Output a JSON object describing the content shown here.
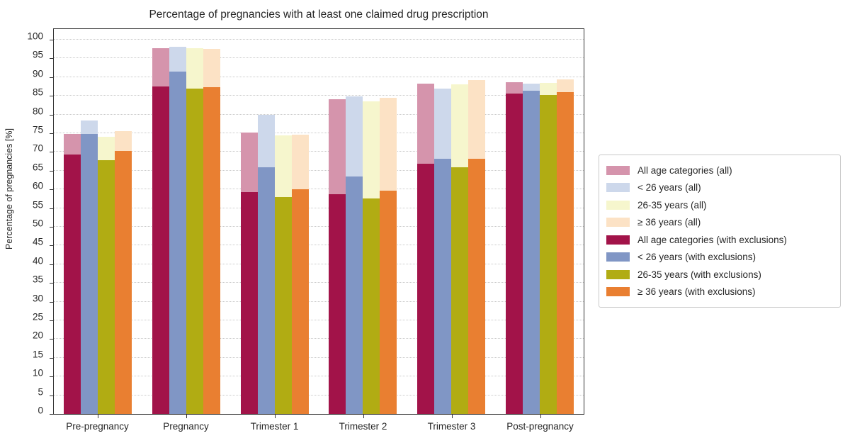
{
  "chart_data": {
    "type": "bar",
    "title": "Percentage of pregnancies with at least one claimed drug prescription",
    "xlabel": "",
    "ylabel": "Percentage of pregnancies [%]",
    "ylim": [
      0,
      100
    ],
    "ytick_step": 5,
    "grid": "horizontal-dotted",
    "legend_position": "right-outside",
    "categories": [
      "Pre-pregnancy",
      "Pregnancy",
      "Trimester 1",
      "Trimester 2",
      "Trimester 3",
      "Post-pregnancy"
    ],
    "series": [
      {
        "name": "All age categories (all)",
        "color": "#d594ac",
        "overlay": "background",
        "values": [
          74.9,
          97.8,
          75.2,
          84.0,
          88.3,
          88.7
        ]
      },
      {
        "name": "< 26 years (all)",
        "color": "#cdd8eb",
        "overlay": "background",
        "values": [
          78.5,
          98.2,
          80.0,
          84.8,
          86.9,
          88.3
        ]
      },
      {
        "name": "26-35 years (all)",
        "color": "#f6f6cd",
        "overlay": "background",
        "values": [
          74.1,
          97.7,
          74.5,
          83.5,
          88.1,
          88.5
        ]
      },
      {
        "name": "≥ 36 years (all)",
        "color": "#fce2c5",
        "overlay": "background",
        "values": [
          75.6,
          97.6,
          74.6,
          84.5,
          89.2,
          89.4
        ]
      },
      {
        "name": "All age categories (with exclusions)",
        "color": "#a21349",
        "overlay": "foreground",
        "values": [
          69.3,
          87.5,
          59.3,
          58.8,
          66.8,
          85.6
        ]
      },
      {
        "name": "< 26 years (with exclusions)",
        "color": "#8096c5",
        "overlay": "foreground",
        "values": [
          74.8,
          91.4,
          66.0,
          63.5,
          68.1,
          86.4
        ]
      },
      {
        "name": "26-35 years (with exclusions)",
        "color": "#b1ac13",
        "overlay": "foreground",
        "values": [
          67.8,
          86.9,
          58.0,
          57.5,
          66.0,
          85.2
        ]
      },
      {
        "name": "≥ 36 years (with exclusions)",
        "color": "#e97f31",
        "overlay": "foreground",
        "values": [
          70.2,
          87.4,
          60.1,
          59.6,
          68.2,
          86.0
        ]
      }
    ]
  }
}
